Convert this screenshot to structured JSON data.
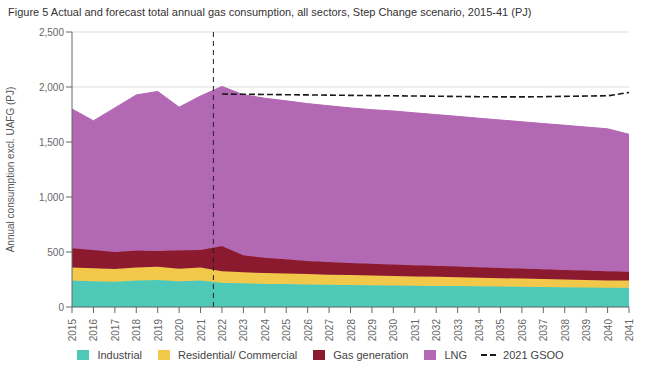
{
  "chart_data": {
    "type": "area",
    "title": "Figure 5 Actual and forecast total annual gas consumption, all sectors, Step Change scenario, 2015-41 (PJ)",
    "ylabel": "Annual consumption excl. UAFG (PJ)",
    "x": [
      2015,
      2016,
      2017,
      2018,
      2019,
      2020,
      2021,
      2022,
      2023,
      2024,
      2025,
      2026,
      2027,
      2028,
      2029,
      2030,
      2031,
      2032,
      2033,
      2034,
      2035,
      2036,
      2037,
      2038,
      2039,
      2040,
      2041
    ],
    "xlim": [
      2015,
      2041
    ],
    "xticks": [
      2015,
      2016,
      2017,
      2018,
      2019,
      2020,
      2021,
      2022,
      2023,
      2024,
      2025,
      2026,
      2027,
      2028,
      2029,
      2030,
      2031,
      2032,
      2033,
      2034,
      2035,
      2036,
      2037,
      2038,
      2039,
      2040,
      2041
    ],
    "ylim": [
      0,
      2500
    ],
    "yticks": [
      0,
      500,
      {
        "value": 1000,
        "label": "1,000"
      },
      {
        "value": 1500,
        "label": "1,500"
      },
      {
        "value": 2000,
        "label": "2,000"
      },
      {
        "value": 2500,
        "label": "2,500"
      }
    ],
    "grid": true,
    "stacked": true,
    "legend": "bottom",
    "vline": 2021.6,
    "series": [
      {
        "name": "Industrial",
        "color": "#4ec9b8",
        "values": [
          240,
          235,
          230,
          240,
          245,
          235,
          240,
          220,
          215,
          210,
          208,
          205,
          202,
          200,
          198,
          196,
          194,
          192,
          190,
          188,
          186,
          184,
          182,
          180,
          178,
          176,
          175
        ]
      },
      {
        "name": "Residential/ Commercial",
        "color": "#f2c84b",
        "values": [
          120,
          118,
          115,
          118,
          120,
          112,
          118,
          105,
          100,
          98,
          96,
          94,
          92,
          90,
          88,
          86,
          84,
          82,
          80,
          78,
          76,
          74,
          72,
          70,
          68,
          66,
          65
        ]
      },
      {
        "name": "Gas generation",
        "color": "#8b1a2e",
        "values": [
          175,
          165,
          155,
          155,
          145,
          170,
          160,
          230,
          155,
          140,
          130,
          120,
          115,
          110,
          108,
          105,
          102,
          100,
          98,
          95,
          93,
          91,
          89,
          87,
          85,
          83,
          80
        ]
      },
      {
        "name": "LNG",
        "color": "#b368b3",
        "values": [
          1265,
          1175,
          1310,
          1415,
          1450,
          1300,
          1400,
          1450,
          1460,
          1450,
          1440,
          1430,
          1420,
          1410,
          1400,
          1395,
          1385,
          1375,
          1365,
          1355,
          1345,
          1335,
          1325,
          1315,
          1305,
          1295,
          1250
        ]
      },
      {
        "name": "2021 GSOO",
        "type": "line",
        "line_style": "dashed",
        "color": "#1a1a1a",
        "values": [
          null,
          null,
          null,
          null,
          null,
          null,
          null,
          1936,
          1934,
          1932,
          1930,
          1928,
          1926,
          1924,
          1922,
          1920,
          1918,
          1916,
          1914,
          1912,
          1910,
          1910,
          1912,
          1915,
          1918,
          1920,
          1950
        ]
      }
    ]
  }
}
